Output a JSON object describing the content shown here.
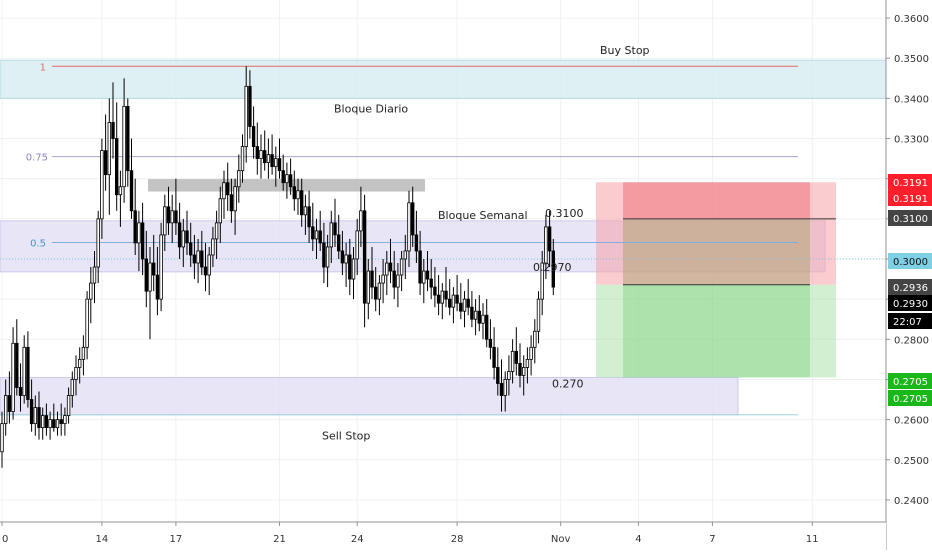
{
  "chart_data": {
    "type": "candlestick",
    "y_axis": {
      "range": [
        0.2345,
        0.3645
      ],
      "ticks": [
        "0.2400",
        "0.2500",
        "0.2600",
        "0.2700",
        "0.2800",
        "0.2900",
        "0.3000",
        "0.3100",
        "0.3200",
        "0.3300",
        "0.3400",
        "0.3500",
        "0.3600"
      ],
      "tick_values": [
        0.24,
        0.25,
        0.26,
        0.27,
        0.28,
        0.29,
        0.3,
        0.31,
        0.32,
        0.33,
        0.34,
        0.35,
        0.36
      ]
    },
    "x_axis": {
      "ticks": [
        {
          "label": "0",
          "bar": 0
        },
        {
          "label": "14",
          "bar": 27
        },
        {
          "label": "17",
          "bar": 47
        },
        {
          "label": "21",
          "bar": 75
        },
        {
          "label": "24",
          "bar": 96
        },
        {
          "label": "28",
          "bar": 123
        },
        {
          "label": "Nov",
          "bar": 151
        },
        {
          "label": "4",
          "bar": 172
        },
        {
          "label": "7",
          "bar": 192
        },
        {
          "label": "11",
          "bar": 219
        }
      ]
    },
    "candles": [
      [
        0.252,
        0.262,
        0.248,
        0.259
      ],
      [
        0.259,
        0.27,
        0.256,
        0.266
      ],
      [
        0.266,
        0.272,
        0.259,
        0.262
      ],
      [
        0.262,
        0.283,
        0.26,
        0.279
      ],
      [
        0.279,
        0.285,
        0.266,
        0.268
      ],
      [
        0.268,
        0.274,
        0.262,
        0.266
      ],
      [
        0.266,
        0.281,
        0.264,
        0.278
      ],
      [
        0.278,
        0.282,
        0.263,
        0.265
      ],
      [
        0.265,
        0.27,
        0.257,
        0.259
      ],
      [
        0.259,
        0.266,
        0.256,
        0.263
      ],
      [
        0.263,
        0.267,
        0.255,
        0.258
      ],
      [
        0.258,
        0.263,
        0.255,
        0.261
      ],
      [
        0.261,
        0.264,
        0.256,
        0.258
      ],
      [
        0.258,
        0.262,
        0.255,
        0.26
      ],
      [
        0.26,
        0.264,
        0.257,
        0.258
      ],
      [
        0.258,
        0.262,
        0.256,
        0.26
      ],
      [
        0.26,
        0.264,
        0.256,
        0.259
      ],
      [
        0.259,
        0.263,
        0.256,
        0.261
      ],
      [
        0.261,
        0.268,
        0.259,
        0.266
      ],
      [
        0.266,
        0.272,
        0.263,
        0.27
      ],
      [
        0.27,
        0.276,
        0.266,
        0.273
      ],
      [
        0.273,
        0.278,
        0.269,
        0.275
      ],
      [
        0.275,
        0.281,
        0.271,
        0.278
      ],
      [
        0.278,
        0.292,
        0.275,
        0.29
      ],
      [
        0.29,
        0.298,
        0.284,
        0.294
      ],
      [
        0.294,
        0.302,
        0.289,
        0.298
      ],
      [
        0.298,
        0.312,
        0.294,
        0.31
      ],
      [
        0.31,
        0.33,
        0.305,
        0.327
      ],
      [
        0.327,
        0.336,
        0.317,
        0.321
      ],
      [
        0.321,
        0.34,
        0.311,
        0.334
      ],
      [
        0.334,
        0.344,
        0.325,
        0.33
      ],
      [
        0.33,
        0.339,
        0.312,
        0.316
      ],
      [
        0.316,
        0.322,
        0.308,
        0.318
      ],
      [
        0.318,
        0.345,
        0.314,
        0.338
      ],
      [
        0.338,
        0.34,
        0.318,
        0.322
      ],
      [
        0.322,
        0.33,
        0.31,
        0.312
      ],
      [
        0.312,
        0.32,
        0.301,
        0.304
      ],
      [
        0.304,
        0.312,
        0.297,
        0.309
      ],
      [
        0.309,
        0.314,
        0.296,
        0.3
      ],
      [
        0.3,
        0.307,
        0.288,
        0.292
      ],
      [
        0.292,
        0.303,
        0.28,
        0.299
      ],
      [
        0.299,
        0.306,
        0.292,
        0.296
      ],
      [
        0.296,
        0.303,
        0.286,
        0.29
      ],
      [
        0.29,
        0.309,
        0.287,
        0.306
      ],
      [
        0.306,
        0.316,
        0.302,
        0.313
      ],
      [
        0.313,
        0.318,
        0.306,
        0.309
      ],
      [
        0.309,
        0.316,
        0.304,
        0.312
      ],
      [
        0.312,
        0.32,
        0.306,
        0.309
      ],
      [
        0.309,
        0.314,
        0.3,
        0.303
      ],
      [
        0.303,
        0.31,
        0.298,
        0.307
      ],
      [
        0.307,
        0.312,
        0.301,
        0.304
      ],
      [
        0.304,
        0.309,
        0.298,
        0.301
      ],
      [
        0.301,
        0.306,
        0.295,
        0.299
      ],
      [
        0.299,
        0.305,
        0.294,
        0.302
      ],
      [
        0.302,
        0.307,
        0.296,
        0.298
      ],
      [
        0.298,
        0.304,
        0.292,
        0.296
      ],
      [
        0.296,
        0.303,
        0.291,
        0.301
      ],
      [
        0.301,
        0.308,
        0.298,
        0.305
      ],
      [
        0.305,
        0.312,
        0.3,
        0.309
      ],
      [
        0.309,
        0.318,
        0.304,
        0.315
      ],
      [
        0.315,
        0.322,
        0.31,
        0.319
      ],
      [
        0.319,
        0.324,
        0.312,
        0.316
      ],
      [
        0.316,
        0.32,
        0.309,
        0.312
      ],
      [
        0.312,
        0.32,
        0.306,
        0.318
      ],
      [
        0.318,
        0.326,
        0.314,
        0.322
      ],
      [
        0.322,
        0.331,
        0.319,
        0.328
      ],
      [
        0.328,
        0.348,
        0.324,
        0.343
      ],
      [
        0.343,
        0.347,
        0.33,
        0.333
      ],
      [
        0.333,
        0.338,
        0.325,
        0.328
      ],
      [
        0.328,
        0.334,
        0.321,
        0.325
      ],
      [
        0.325,
        0.331,
        0.32,
        0.327
      ],
      [
        0.327,
        0.332,
        0.322,
        0.324
      ],
      [
        0.324,
        0.33,
        0.32,
        0.326
      ],
      [
        0.326,
        0.331,
        0.321,
        0.323
      ],
      [
        0.323,
        0.328,
        0.318,
        0.325
      ],
      [
        0.325,
        0.33,
        0.32,
        0.322
      ],
      [
        0.322,
        0.326,
        0.317,
        0.319
      ],
      [
        0.319,
        0.324,
        0.315,
        0.321
      ],
      [
        0.321,
        0.325,
        0.316,
        0.318
      ],
      [
        0.318,
        0.322,
        0.312,
        0.315
      ],
      [
        0.315,
        0.32,
        0.311,
        0.317
      ],
      [
        0.317,
        0.32,
        0.308,
        0.311
      ],
      [
        0.311,
        0.316,
        0.306,
        0.313
      ],
      [
        0.313,
        0.317,
        0.304,
        0.308
      ],
      [
        0.308,
        0.314,
        0.302,
        0.305
      ],
      [
        0.305,
        0.31,
        0.3,
        0.307
      ],
      [
        0.307,
        0.312,
        0.302,
        0.304
      ],
      [
        0.304,
        0.309,
        0.294,
        0.298
      ],
      [
        0.298,
        0.306,
        0.293,
        0.303
      ],
      [
        0.303,
        0.312,
        0.299,
        0.309
      ],
      [
        0.309,
        0.315,
        0.303,
        0.306
      ],
      [
        0.306,
        0.311,
        0.3,
        0.302
      ],
      [
        0.302,
        0.307,
        0.296,
        0.299
      ],
      [
        0.299,
        0.304,
        0.293,
        0.301
      ],
      [
        0.301,
        0.305,
        0.291,
        0.295
      ],
      [
        0.295,
        0.303,
        0.29,
        0.3
      ],
      [
        0.3,
        0.31,
        0.296,
        0.307
      ],
      [
        0.307,
        0.318,
        0.303,
        0.312
      ],
      [
        0.312,
        0.316,
        0.283,
        0.289
      ],
      [
        0.289,
        0.3,
        0.285,
        0.297
      ],
      [
        0.297,
        0.303,
        0.29,
        0.293
      ],
      [
        0.293,
        0.298,
        0.287,
        0.29
      ],
      [
        0.29,
        0.296,
        0.286,
        0.294
      ],
      [
        0.294,
        0.3,
        0.289,
        0.296
      ],
      [
        0.296,
        0.302,
        0.291,
        0.299
      ],
      [
        0.299,
        0.305,
        0.294,
        0.297
      ],
      [
        0.297,
        0.302,
        0.29,
        0.293
      ],
      [
        0.293,
        0.299,
        0.288,
        0.296
      ],
      [
        0.296,
        0.302,
        0.292,
        0.3
      ],
      [
        0.3,
        0.306,
        0.295,
        0.302
      ],
      [
        0.302,
        0.317,
        0.298,
        0.314
      ],
      [
        0.314,
        0.318,
        0.303,
        0.306
      ],
      [
        0.306,
        0.312,
        0.299,
        0.302
      ],
      [
        0.302,
        0.307,
        0.291,
        0.294
      ],
      [
        0.294,
        0.3,
        0.289,
        0.297
      ],
      [
        0.297,
        0.302,
        0.292,
        0.295
      ],
      [
        0.295,
        0.3,
        0.29,
        0.293
      ],
      [
        0.293,
        0.298,
        0.288,
        0.291
      ],
      [
        0.291,
        0.296,
        0.286,
        0.289
      ],
      [
        0.289,
        0.294,
        0.285,
        0.292
      ],
      [
        0.292,
        0.298,
        0.288,
        0.29
      ],
      [
        0.29,
        0.295,
        0.286,
        0.288
      ],
      [
        0.288,
        0.293,
        0.284,
        0.291
      ],
      [
        0.291,
        0.296,
        0.287,
        0.289
      ],
      [
        0.289,
        0.294,
        0.285,
        0.287
      ],
      [
        0.287,
        0.292,
        0.283,
        0.29
      ],
      [
        0.29,
        0.295,
        0.286,
        0.288
      ],
      [
        0.288,
        0.292,
        0.283,
        0.285
      ],
      [
        0.285,
        0.29,
        0.281,
        0.287
      ],
      [
        0.287,
        0.291,
        0.282,
        0.284
      ],
      [
        0.284,
        0.289,
        0.28,
        0.286
      ],
      [
        0.286,
        0.29,
        0.278,
        0.28
      ],
      [
        0.28,
        0.285,
        0.275,
        0.278
      ],
      [
        0.278,
        0.283,
        0.27,
        0.273
      ],
      [
        0.273,
        0.278,
        0.266,
        0.269
      ],
      [
        0.269,
        0.275,
        0.262,
        0.266
      ],
      [
        0.266,
        0.272,
        0.262,
        0.27
      ],
      [
        0.27,
        0.276,
        0.266,
        0.272
      ],
      [
        0.272,
        0.28,
        0.269,
        0.277
      ],
      [
        0.277,
        0.283,
        0.271,
        0.274
      ],
      [
        0.274,
        0.279,
        0.268,
        0.271
      ],
      [
        0.271,
        0.276,
        0.266,
        0.273
      ],
      [
        0.273,
        0.278,
        0.269,
        0.275
      ],
      [
        0.275,
        0.281,
        0.271,
        0.278
      ],
      [
        0.278,
        0.285,
        0.274,
        0.282
      ],
      [
        0.282,
        0.292,
        0.279,
        0.29
      ],
      [
        0.29,
        0.302,
        0.286,
        0.299
      ],
      [
        0.299,
        0.311,
        0.295,
        0.308
      ],
      [
        0.308,
        0.312,
        0.298,
        0.302
      ],
      [
        0.302,
        0.305,
        0.291,
        0.293
      ]
    ],
    "price_scale_labels": [
      {
        "text": "0.3191",
        "style": "red"
      },
      {
        "text": "0.3191",
        "style": "red"
      },
      {
        "text": "0.3100",
        "style": "dark"
      },
      {
        "text": "0.3000",
        "style": "cyan"
      },
      {
        "text": "0.2936",
        "style": "dark"
      },
      {
        "text": "0.2930",
        "style": "black"
      },
      {
        "text": "22:07",
        "style": "black"
      },
      {
        "text": "0.2705",
        "style": "green"
      },
      {
        "text": "0.2705",
        "style": "green"
      }
    ],
    "fib_labels": {
      "level_1": "1",
      "level_075": "0.75",
      "level_05": "0.5"
    },
    "annotations": {
      "buy_stop": "Buy Stop",
      "bloque_diario": "Bloque Diario",
      "bloque_semanal": "Bloque Semanal",
      "sell_stop": "Sell Stop",
      "price_3100": "0.3100",
      "price_2970": "0.2970",
      "price_270": "0.270"
    },
    "position": {
      "entry": 0.2936,
      "stop": 0.3191,
      "target": 0.2705
    },
    "zones": {
      "daily_block": [
        0.34,
        0.3495
      ],
      "weekly_block": [
        0.2968,
        0.3095
      ],
      "sell_zone": [
        0.2612,
        0.2705
      ]
    },
    "colors": {
      "bull": "#ffffff",
      "bear": "#000000",
      "daily_zone": "#d6ecf0",
      "weekly_zone": "#e3e0f4",
      "loss_zone": "#f5a3a8",
      "profit_zone": "#a6e0a6"
    }
  }
}
